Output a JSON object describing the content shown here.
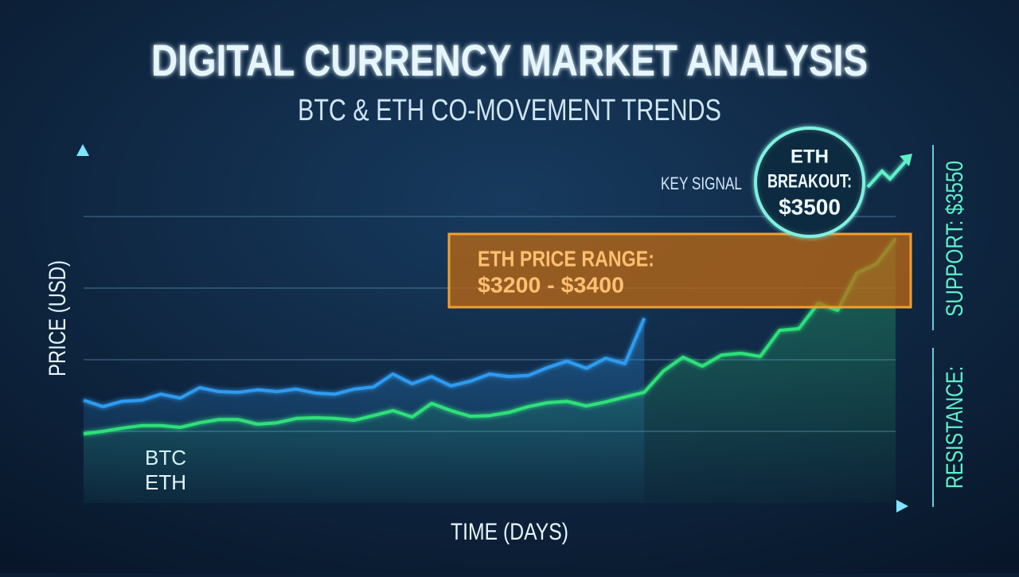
{
  "chart_data": {
    "type": "line",
    "title": "DIGITAL CURRENCY MARKET ANALYSIS",
    "subtitle": "BTC & ETH CO-MOVEMENT TRENDS",
    "x_label": "TIME (DAYS)",
    "y_label": "PRICE (USD)",
    "x": [
      0,
      1,
      2,
      3,
      4,
      5,
      6,
      7,
      8,
      9,
      10,
      11,
      12,
      13,
      14,
      15,
      16,
      17,
      18,
      19,
      20,
      21,
      22,
      23,
      24,
      25,
      26,
      27,
      28,
      29,
      30,
      31,
      32,
      33,
      34,
      35,
      36,
      37,
      38,
      39,
      40,
      41,
      42
    ],
    "xlim": [
      0,
      42
    ],
    "ylim": [
      0,
      100
    ],
    "grid_lines": [
      20,
      40,
      60,
      80
    ],
    "legend": "bottom-left",
    "series": [
      {
        "name": "BTC",
        "color": "#2f9bf0",
        "values": [
          28.7,
          26.9,
          28.4,
          28.7,
          30.4,
          29.3,
          32.2,
          31.1,
          30.9,
          31.6,
          31.1,
          31.8,
          30.7,
          30.4,
          31.8,
          32.4,
          36,
          33.3,
          35.3,
          32.7,
          34,
          36,
          35.3,
          35.6,
          37.8,
          39.6,
          37.6,
          40.4,
          38.9,
          51.6,
          null,
          null,
          null,
          null,
          null,
          null,
          null,
          null,
          null,
          null,
          null,
          null,
          null
        ]
      },
      {
        "name": "ETH",
        "color": "#2fe07a",
        "values": [
          19.3,
          20,
          20.9,
          21.6,
          21.6,
          21.1,
          22.4,
          23.3,
          23.3,
          22,
          22.4,
          23.6,
          23.8,
          23.6,
          23.1,
          24.4,
          25.8,
          24,
          27.8,
          25.8,
          24.2,
          24.4,
          25.3,
          26.9,
          28,
          28.4,
          27.1,
          28.2,
          29.6,
          30.9,
          36.9,
          40.7,
          38.2,
          41.3,
          41.8,
          40.9,
          48.2,
          48.7,
          55.8,
          53.8,
          64.2,
          66.7,
          73.8
        ]
      }
    ],
    "annotations": {
      "range_title": "ETH PRICE RANGE:",
      "range_value": "$3200 - $3400",
      "key_signal": "KEY SIGNAL",
      "breakout_1": "ETH",
      "breakout_2": "BREAKOUT:",
      "breakout_3": "$3500",
      "support": "SUPPORT: $3550",
      "resistance": "RESISTANCE:"
    }
  }
}
